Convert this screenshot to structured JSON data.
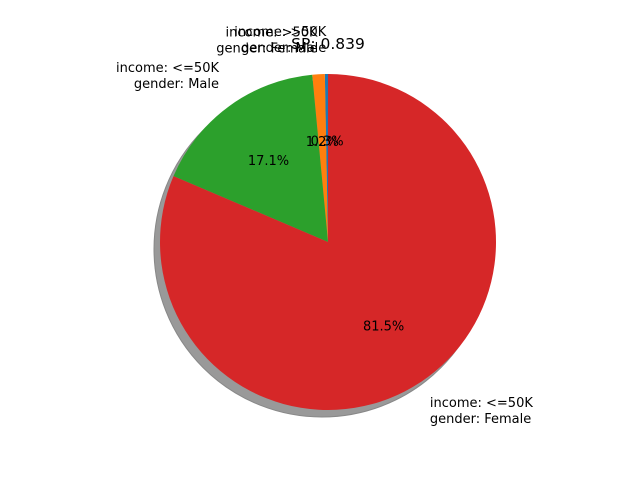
{
  "chart_data": {
    "type": "pie",
    "title": "SP: 0.839",
    "slices": [
      {
        "label_line1": "income: >50K",
        "label_line2": "gender: Male",
        "value": 0.3,
        "pct_label": "0.3%",
        "color": "#1f77b4"
      },
      {
        "label_line1": "income: >50K",
        "label_line2": "gender: Female",
        "value": 1.2,
        "pct_label": "1.2%",
        "color": "#ff7f0e"
      },
      {
        "label_line1": "income: <=50K",
        "label_line2": "gender: Male",
        "value": 17.1,
        "pct_label": "17.1%",
        "color": "#2ca02c"
      },
      {
        "label_line1": "income: <=50K",
        "label_line2": "gender: Female",
        "value": 81.5,
        "pct_label": "81.5%",
        "color": "#d62728"
      }
    ],
    "shadow": true,
    "start_angle_deg": 90,
    "direction": "counterclockwise"
  }
}
